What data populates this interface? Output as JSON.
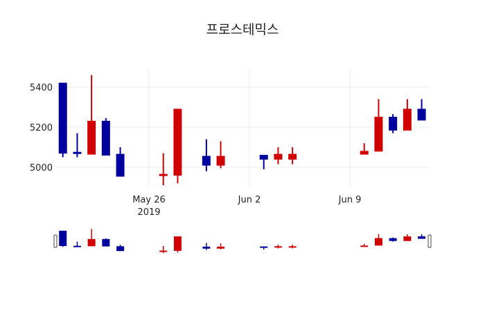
{
  "chart_data": {
    "type": "candlestick",
    "title": "프로스테믹스",
    "xlabel": "",
    "ylabel": "",
    "ylim": [
      4880,
      5480
    ],
    "yticks": [
      5000,
      5200,
      5400
    ],
    "xticks": [
      {
        "date": "2019-05-26",
        "label": "May 26",
        "sublabel": "2019"
      },
      {
        "date": "2019-06-02",
        "label": "Jun 2",
        "sublabel": ""
      },
      {
        "date": "2019-06-09",
        "label": "Jun 9",
        "sublabel": ""
      }
    ],
    "grid": true,
    "rangeslider": true,
    "increasing_color": "#d10000",
    "decreasing_color": "#00009e",
    "series": [
      {
        "date": "2019-05-20",
        "open": 5420,
        "high": 5420,
        "low": 5050,
        "close": 5070
      },
      {
        "date": "2019-05-21",
        "open": 5075,
        "high": 5170,
        "low": 5050,
        "close": 5070
      },
      {
        "date": "2019-05-22",
        "open": 5065,
        "high": 5460,
        "low": 5065,
        "close": 5230
      },
      {
        "date": "2019-05-23",
        "open": 5230,
        "high": 5245,
        "low": 5060,
        "close": 5060
      },
      {
        "date": "2019-05-24",
        "open": 5065,
        "high": 5100,
        "low": 4955,
        "close": 4955
      },
      {
        "date": "2019-05-27",
        "open": 4960,
        "high": 5070,
        "low": 4910,
        "close": 4965
      },
      {
        "date": "2019-05-28",
        "open": 4960,
        "high": 5290,
        "low": 4920,
        "close": 5290
      },
      {
        "date": "2019-05-30",
        "open": 5055,
        "high": 5140,
        "low": 4980,
        "close": 5010
      },
      {
        "date": "2019-05-31",
        "open": 5010,
        "high": 5130,
        "low": 4995,
        "close": 5055
      },
      {
        "date": "2019-06-03",
        "open": 5060,
        "high": 5060,
        "low": 4990,
        "close": 5040
      },
      {
        "date": "2019-06-04",
        "open": 5040,
        "high": 5100,
        "low": 5015,
        "close": 5065
      },
      {
        "date": "2019-06-05",
        "open": 5040,
        "high": 5100,
        "low": 5015,
        "close": 5065
      },
      {
        "date": "2019-06-10",
        "open": 5065,
        "high": 5120,
        "low": 5065,
        "close": 5080
      },
      {
        "date": "2019-06-11",
        "open": 5080,
        "high": 5340,
        "low": 5080,
        "close": 5250
      },
      {
        "date": "2019-06-12",
        "open": 5250,
        "high": 5265,
        "low": 5170,
        "close": 5185
      },
      {
        "date": "2019-06-13",
        "open": 5185,
        "high": 5340,
        "low": 5185,
        "close": 5290
      },
      {
        "date": "2019-06-14",
        "open": 5290,
        "high": 5340,
        "low": 5235,
        "close": 5235
      }
    ]
  }
}
